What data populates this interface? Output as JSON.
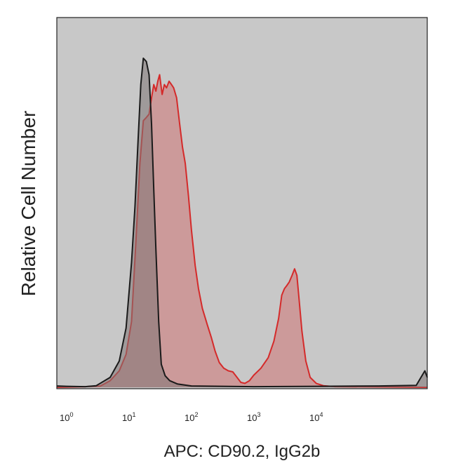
{
  "chart_data": {
    "type": "area",
    "title": "",
    "xlabel": "APC: CD90.2, IgG2b",
    "ylabel": "Relative Cell Number",
    "x_scale": "log",
    "xlim": [
      0.7,
      600000
    ],
    "ylim": [
      0,
      1.0
    ],
    "grid": false,
    "legend": "none",
    "plot_background": "#c8c8c8",
    "x_ticks": [
      {
        "value": 1,
        "base": "10",
        "exp": "0"
      },
      {
        "value": 10,
        "base": "10",
        "exp": "1"
      },
      {
        "value": 100,
        "base": "10",
        "exp": "2"
      },
      {
        "value": 1000,
        "base": "10",
        "exp": "3"
      },
      {
        "value": 10000,
        "base": "10",
        "exp": "4"
      }
    ],
    "series": [
      {
        "stroke": "#1a1a1a",
        "fill": "#7d7474",
        "fill_opacity": 0.55,
        "points": [
          [
            0.7,
            0.004
          ],
          [
            1.0,
            0.003
          ],
          [
            2.0,
            0.002
          ],
          [
            3.0,
            0.005
          ],
          [
            5.0,
            0.03
          ],
          [
            7.0,
            0.08
          ],
          [
            9.0,
            0.18
          ],
          [
            11.0,
            0.38
          ],
          [
            12.5,
            0.55
          ],
          [
            14.0,
            0.75
          ],
          [
            15.5,
            0.92
          ],
          [
            17.0,
            1.0
          ],
          [
            19.0,
            0.99
          ],
          [
            21.0,
            0.95
          ],
          [
            23.0,
            0.8
          ],
          [
            25.0,
            0.6
          ],
          [
            27.0,
            0.42
          ],
          [
            30.0,
            0.2
          ],
          [
            33.0,
            0.07
          ],
          [
            38.0,
            0.035
          ],
          [
            45.0,
            0.02
          ],
          [
            60.0,
            0.01
          ],
          [
            100.0,
            0.004
          ],
          [
            1000.0,
            0.002
          ],
          [
            10000.0,
            0.003
          ],
          [
            100000.0,
            0.004
          ],
          [
            400000.0,
            0.006
          ],
          [
            550000.0,
            0.05
          ],
          [
            600000.0,
            0.03
          ]
        ]
      },
      {
        "stroke": "#d42a2a",
        "fill": "#cf6b6b",
        "fill_opacity": 0.5,
        "points": [
          [
            0.7,
            0.0
          ],
          [
            2.0,
            0.002
          ],
          [
            3.5,
            0.004
          ],
          [
            5.0,
            0.02
          ],
          [
            7.0,
            0.05
          ],
          [
            9.0,
            0.1
          ],
          [
            11.0,
            0.2
          ],
          [
            13.0,
            0.45
          ],
          [
            15.0,
            0.68
          ],
          [
            17.0,
            0.81
          ],
          [
            19.0,
            0.82
          ],
          [
            21.0,
            0.83
          ],
          [
            23.0,
            0.88
          ],
          [
            25.0,
            0.92
          ],
          [
            27.0,
            0.9
          ],
          [
            29.0,
            0.93
          ],
          [
            31.0,
            0.95
          ],
          [
            34.0,
            0.89
          ],
          [
            37.0,
            0.92
          ],
          [
            40.0,
            0.91
          ],
          [
            44.0,
            0.93
          ],
          [
            48.0,
            0.92
          ],
          [
            52.0,
            0.91
          ],
          [
            58.0,
            0.88
          ],
          [
            65.0,
            0.8
          ],
          [
            72.0,
            0.73
          ],
          [
            80.0,
            0.68
          ],
          [
            90.0,
            0.58
          ],
          [
            100.0,
            0.48
          ],
          [
            115.0,
            0.37
          ],
          [
            130.0,
            0.3
          ],
          [
            150.0,
            0.24
          ],
          [
            180.0,
            0.19
          ],
          [
            210.0,
            0.15
          ],
          [
            240.0,
            0.11
          ],
          [
            280.0,
            0.075
          ],
          [
            330.0,
            0.058
          ],
          [
            390.0,
            0.05
          ],
          [
            460.0,
            0.047
          ],
          [
            530.0,
            0.032
          ],
          [
            620.0,
            0.015
          ],
          [
            720.0,
            0.012
          ],
          [
            850.0,
            0.02
          ],
          [
            1000.0,
            0.037
          ],
          [
            1300.0,
            0.058
          ],
          [
            1700.0,
            0.09
          ],
          [
            2100.0,
            0.14
          ],
          [
            2500.0,
            0.21
          ],
          [
            2800.0,
            0.28
          ],
          [
            3100.0,
            0.3
          ],
          [
            3400.0,
            0.31
          ],
          [
            3700.0,
            0.32
          ],
          [
            4100.0,
            0.34
          ],
          [
            4500.0,
            0.36
          ],
          [
            4900.0,
            0.34
          ],
          [
            5300.0,
            0.27
          ],
          [
            5900.0,
            0.17
          ],
          [
            6800.0,
            0.08
          ],
          [
            8000.0,
            0.03
          ],
          [
            10000.0,
            0.012
          ],
          [
            13000.0,
            0.005
          ],
          [
            20000.0,
            0.002
          ],
          [
            600000.0,
            0.0
          ]
        ]
      }
    ]
  }
}
